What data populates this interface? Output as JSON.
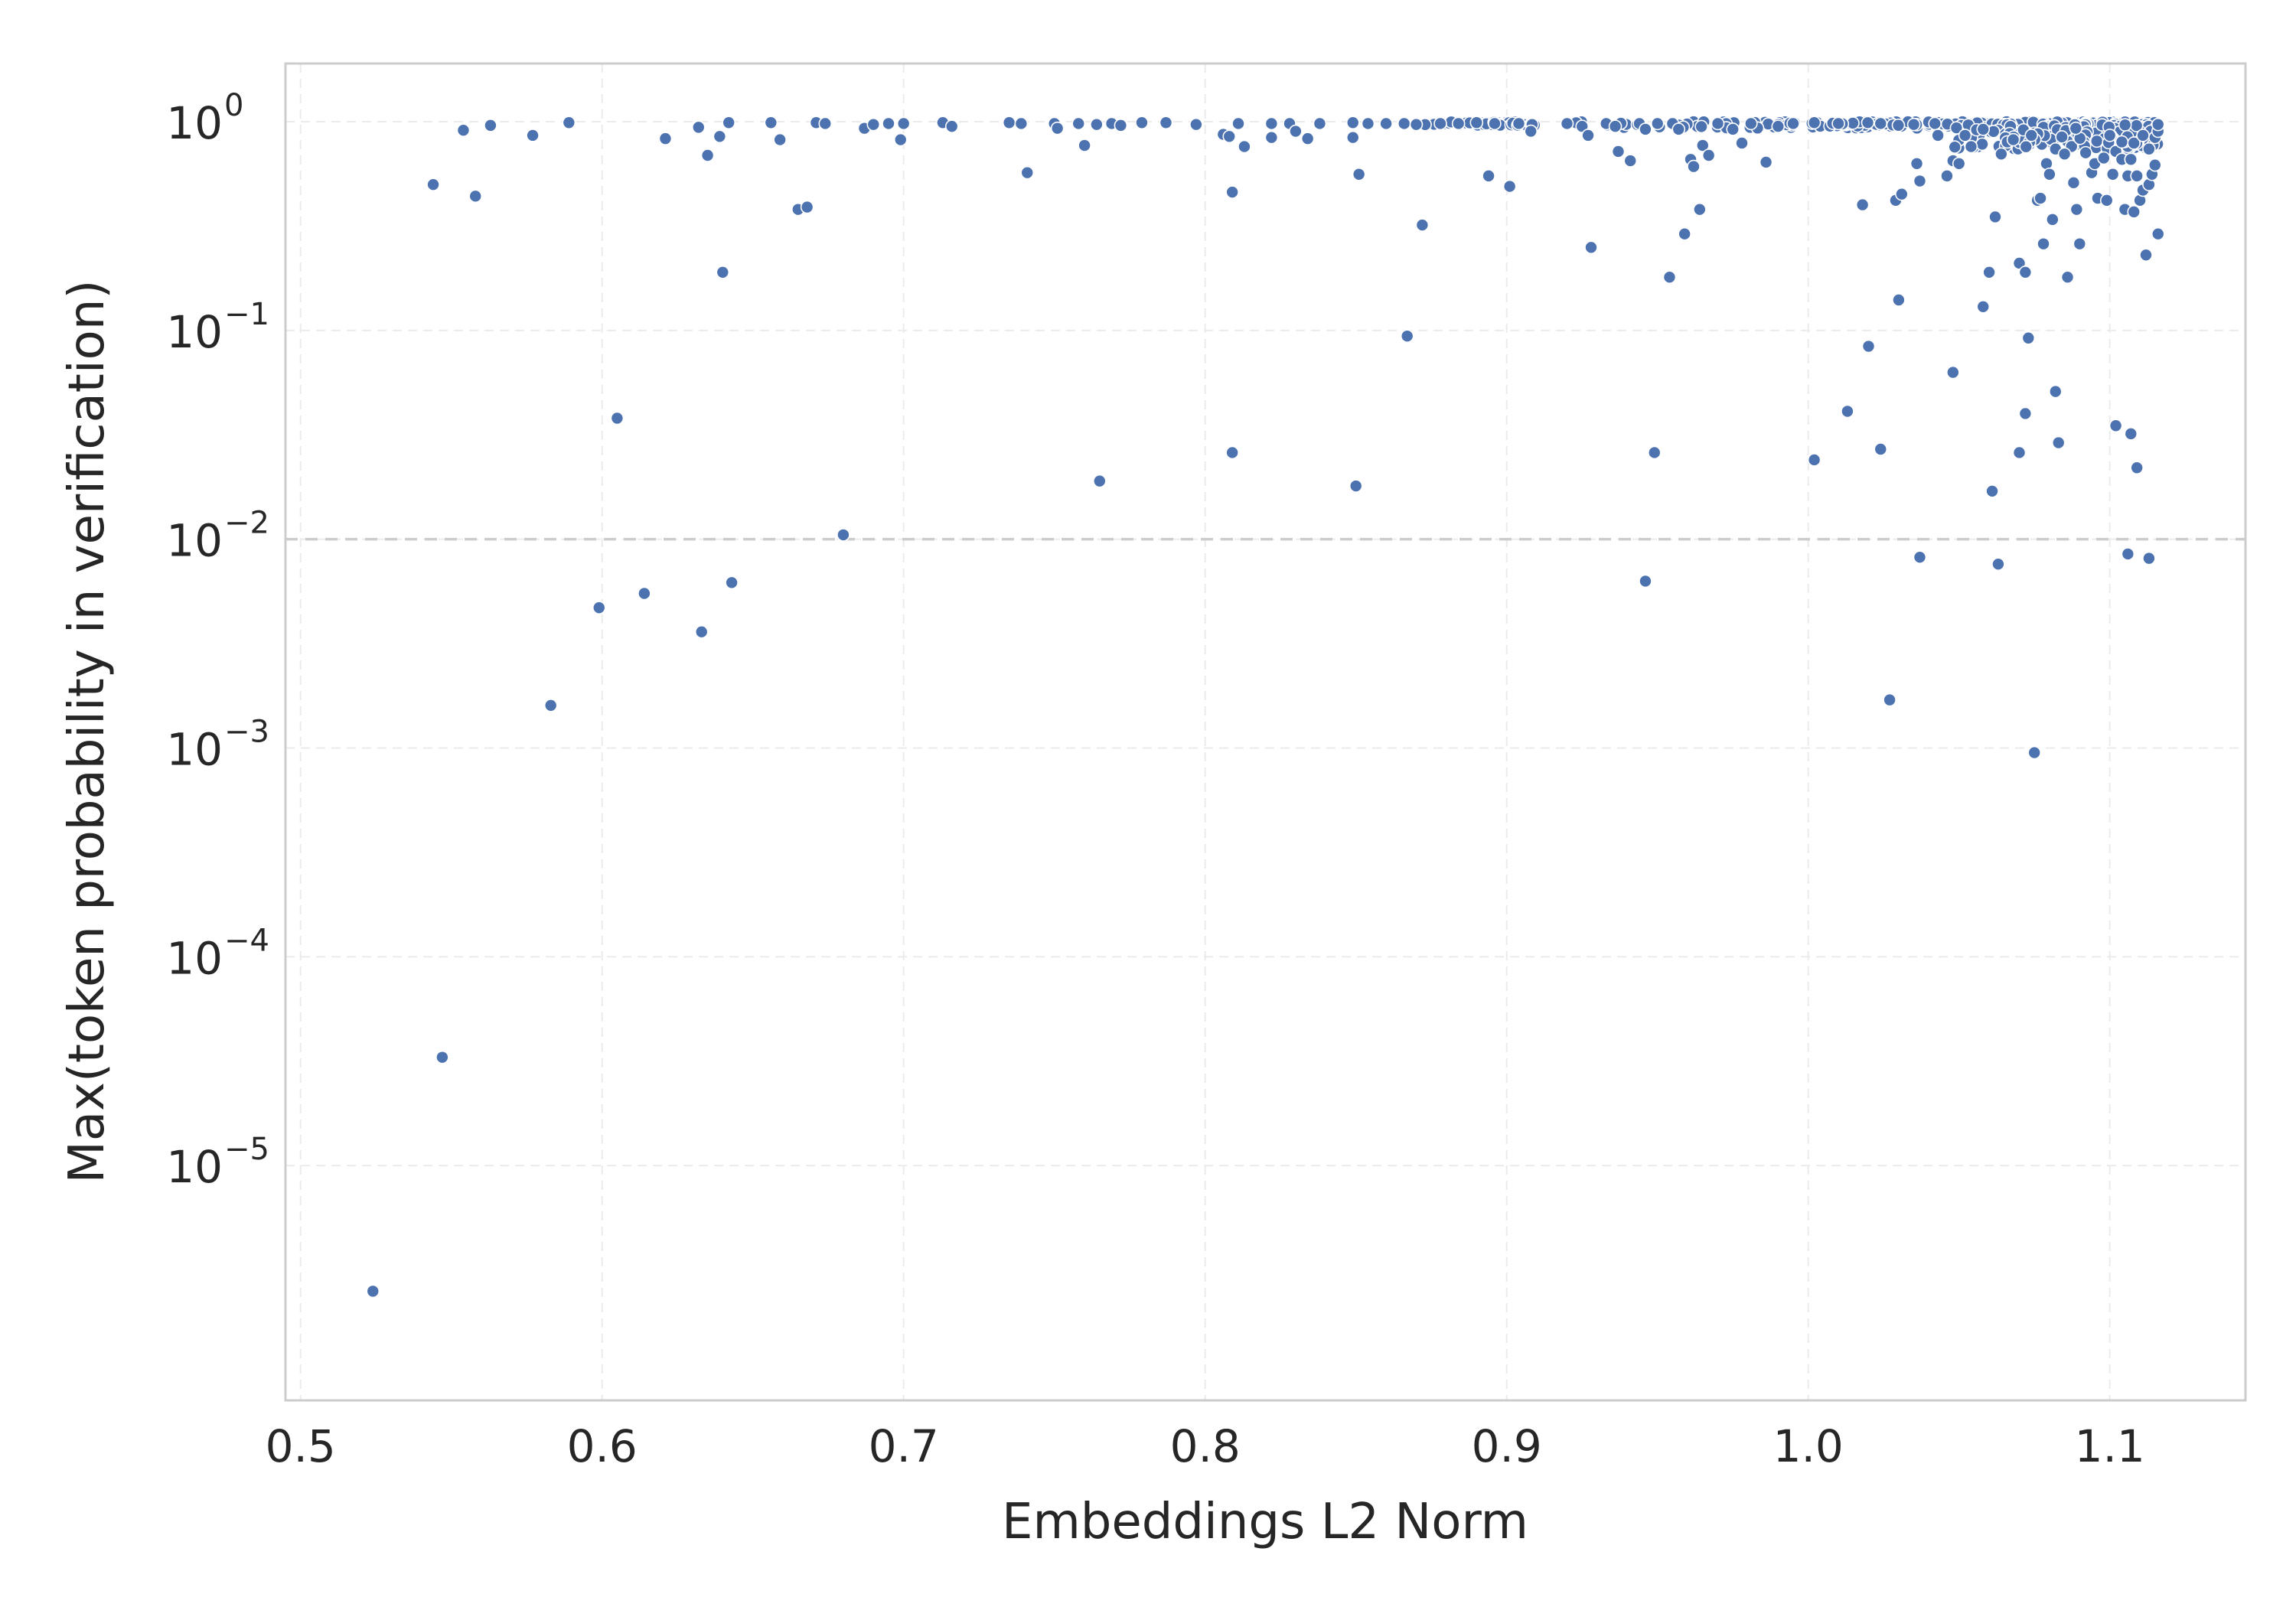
{
  "chart_data": {
    "type": "scatter",
    "title": "",
    "xlabel": "Embeddings L2 Norm",
    "ylabel": "Max(token probability in verification)",
    "x_scale": "linear",
    "y_scale": "log",
    "xlim": [
      0.495,
      1.145
    ],
    "ylim": [
      7.5e-07,
      1.9
    ],
    "x_ticks": [
      0.5,
      0.6,
      0.7,
      0.8,
      0.9,
      1.0,
      1.1
    ],
    "x_tick_labels": [
      "0.5",
      "0.6",
      "0.7",
      "0.8",
      "0.9",
      "1.0",
      "1.1"
    ],
    "y_ticks": [
      {
        "value": 1,
        "base": "10",
        "exp": "0"
      },
      {
        "value": 0.1,
        "base": "10",
        "exp": "−1"
      },
      {
        "value": 0.01,
        "base": "10",
        "exp": "−2"
      },
      {
        "value": 0.001,
        "base": "10",
        "exp": "−3"
      },
      {
        "value": 0.0001,
        "base": "10",
        "exp": "−4"
      },
      {
        "value": 1e-05,
        "base": "10",
        "exp": "−5"
      }
    ],
    "reference_line": {
      "y": 0.01,
      "style": "dashed"
    },
    "grid": true,
    "legend": "none",
    "colors": {
      "points": "#4c72b0",
      "point_edge": "#ffffff",
      "grid": "#ebebeb",
      "spine": "#cccccc",
      "reference": "#cccccc"
    },
    "points": [
      [
        0.524,
        2.5e-06
      ],
      [
        0.547,
        3.3e-05
      ],
      [
        0.583,
        0.0016
      ],
      [
        0.599,
        0.0047
      ],
      [
        0.605,
        0.038
      ],
      [
        0.614,
        0.0055
      ],
      [
        0.633,
        0.0036
      ],
      [
        0.64,
        0.19
      ],
      [
        0.643,
        0.0062
      ],
      [
        0.68,
        0.0105
      ],
      [
        0.765,
        0.019
      ],
      [
        0.809,
        0.026
      ],
      [
        0.85,
        0.018
      ],
      [
        0.867,
        0.094
      ],
      [
        0.946,
        0.0063
      ],
      [
        0.949,
        0.026
      ],
      [
        1.002,
        0.024
      ],
      [
        1.013,
        0.041
      ],
      [
        1.02,
        0.084
      ],
      [
        1.024,
        0.027
      ],
      [
        1.027,
        0.0017
      ],
      [
        1.03,
        0.14
      ],
      [
        1.037,
        0.0082
      ],
      [
        1.048,
        0.063
      ],
      [
        1.061,
        0.017
      ],
      [
        1.063,
        0.0076
      ],
      [
        1.07,
        0.026
      ],
      [
        1.072,
        0.04
      ],
      [
        1.073,
        0.092
      ],
      [
        1.075,
        0.00095
      ],
      [
        1.082,
        0.051
      ],
      [
        1.083,
        0.029
      ],
      [
        1.102,
        0.035
      ],
      [
        1.106,
        0.0085
      ],
      [
        1.107,
        0.032
      ],
      [
        1.109,
        0.022
      ],
      [
        1.113,
        0.0081
      ],
      [
        0.544,
        0.5
      ],
      [
        0.554,
        0.91
      ],
      [
        0.558,
        0.44
      ],
      [
        0.563,
        0.96
      ],
      [
        0.577,
        0.86
      ],
      [
        0.589,
        0.99
      ],
      [
        0.621,
        0.83
      ],
      [
        0.632,
        0.94
      ],
      [
        0.635,
        0.69
      ],
      [
        0.639,
        0.85
      ],
      [
        0.642,
        0.99
      ],
      [
        0.656,
        0.99
      ],
      [
        0.659,
        0.82
      ],
      [
        0.665,
        0.38
      ],
      [
        0.668,
        0.39
      ],
      [
        0.671,
        0.99
      ],
      [
        0.674,
        0.98
      ],
      [
        0.687,
        0.93
      ],
      [
        0.69,
        0.97
      ],
      [
        0.695,
        0.98
      ],
      [
        0.699,
        0.82
      ],
      [
        0.7,
        0.98
      ],
      [
        0.713,
        0.99
      ],
      [
        0.716,
        0.95
      ],
      [
        0.735,
        0.99
      ],
      [
        0.739,
        0.98
      ],
      [
        0.741,
        0.57
      ],
      [
        0.75,
        0.98
      ],
      [
        0.751,
        0.93
      ],
      [
        0.758,
        0.98
      ],
      [
        0.76,
        0.77
      ],
      [
        0.764,
        0.97
      ],
      [
        0.769,
        0.98
      ],
      [
        0.772,
        0.96
      ],
      [
        0.779,
        0.99
      ],
      [
        0.787,
        0.99
      ],
      [
        0.797,
        0.97
      ],
      [
        0.806,
        0.87
      ],
      [
        0.808,
        0.85
      ],
      [
        0.809,
        0.46
      ],
      [
        0.811,
        0.98
      ],
      [
        0.813,
        0.76
      ],
      [
        0.822,
        0.98
      ],
      [
        0.822,
        0.84
      ],
      [
        0.828,
        0.98
      ],
      [
        0.83,
        0.9
      ],
      [
        0.834,
        0.83
      ],
      [
        0.838,
        0.98
      ],
      [
        0.849,
        0.99
      ],
      [
        0.849,
        0.84
      ],
      [
        0.851,
        0.56
      ],
      [
        0.854,
        0.98
      ],
      [
        0.86,
        0.98
      ],
      [
        0.866,
        0.98
      ],
      [
        0.87,
        0.97
      ],
      [
        0.872,
        0.32
      ],
      [
        0.878,
        0.98
      ],
      [
        0.884,
        0.98
      ],
      [
        0.89,
        0.99
      ],
      [
        0.894,
        0.55
      ],
      [
        0.896,
        0.98
      ],
      [
        0.901,
        0.49
      ],
      [
        0.904,
        0.98
      ],
      [
        0.908,
        0.9
      ],
      [
        0.92,
        0.98
      ],
      [
        0.925,
        0.95
      ],
      [
        0.927,
        0.86
      ],
      [
        0.928,
        0.25
      ],
      [
        0.933,
        0.98
      ],
      [
        0.936,
        0.95
      ],
      [
        0.937,
        0.72
      ],
      [
        0.941,
        0.65
      ],
      [
        0.944,
        0.98
      ],
      [
        0.946,
        0.92
      ],
      [
        0.95,
        0.98
      ],
      [
        0.954,
        0.18
      ],
      [
        0.955,
        0.98
      ],
      [
        0.957,
        0.92
      ],
      [
        0.959,
        0.29
      ],
      [
        0.961,
        0.66
      ],
      [
        0.962,
        0.61
      ],
      [
        0.964,
        0.38
      ],
      [
        0.965,
        0.77
      ],
      [
        0.967,
        0.69
      ],
      [
        0.97,
        0.98
      ],
      [
        0.975,
        0.92
      ],
      [
        0.978,
        0.79
      ],
      [
        0.981,
        0.98
      ],
      [
        0.986,
        0.64
      ],
      [
        0.99,
        0.95
      ],
      [
        0.995,
        0.98
      ],
      [
        1.002,
        0.99
      ],
      [
        1.01,
        0.98
      ],
      [
        1.018,
        0.4
      ],
      [
        1.024,
        0.98
      ],
      [
        1.029,
        0.42
      ],
      [
        1.031,
        0.45
      ],
      [
        1.035,
        0.97
      ],
      [
        1.036,
        0.63
      ],
      [
        1.037,
        0.52
      ],
      [
        1.042,
        0.98
      ],
      [
        1.043,
        0.86
      ],
      [
        1.046,
        0.55
      ],
      [
        1.048,
        0.65
      ],
      [
        1.05,
        0.63
      ],
      [
        1.052,
        0.86
      ],
      [
        1.054,
        0.76
      ],
      [
        1.058,
        0.13
      ],
      [
        1.058,
        0.92
      ],
      [
        1.06,
        0.19
      ],
      [
        1.062,
        0.35
      ],
      [
        1.064,
        0.7
      ],
      [
        1.066,
        0.8
      ],
      [
        1.068,
        0.82
      ],
      [
        1.07,
        0.21
      ],
      [
        1.072,
        0.19
      ],
      [
        1.074,
        0.86
      ],
      [
        1.076,
        0.42
      ],
      [
        1.077,
        0.43
      ],
      [
        1.078,
        0.26
      ],
      [
        1.079,
        0.63
      ],
      [
        1.08,
        0.56
      ],
      [
        1.081,
        0.34
      ],
      [
        1.082,
        0.74
      ],
      [
        1.085,
        0.7
      ],
      [
        1.086,
        0.18
      ],
      [
        1.088,
        0.51
      ],
      [
        1.089,
        0.38
      ],
      [
        1.09,
        0.26
      ],
      [
        1.092,
        0.71
      ],
      [
        1.094,
        0.57
      ],
      [
        1.095,
        0.63
      ],
      [
        1.096,
        0.43
      ],
      [
        1.098,
        0.67
      ],
      [
        1.099,
        0.42
      ],
      [
        1.101,
        0.56
      ],
      [
        1.102,
        0.72
      ],
      [
        1.104,
        0.66
      ],
      [
        1.105,
        0.38
      ],
      [
        1.106,
        0.55
      ],
      [
        1.107,
        0.66
      ],
      [
        1.108,
        0.37
      ],
      [
        1.109,
        0.55
      ],
      [
        1.11,
        0.42
      ],
      [
        1.111,
        0.47
      ],
      [
        1.112,
        0.23
      ],
      [
        1.113,
        0.5
      ],
      [
        1.114,
        0.56
      ],
      [
        1.115,
        0.62
      ],
      [
        1.116,
        0.29
      ],
      [
        1.1,
        0.86
      ],
      [
        1.104,
        0.8
      ],
      [
        1.108,
        0.79
      ],
      [
        1.111,
        0.86
      ],
      [
        1.113,
        0.74
      ],
      [
        1.115,
        0.84
      ],
      [
        1.116,
        0.9
      ],
      [
        1.116,
        0.97
      ]
    ],
    "dense_bands": [
      {
        "x_start": 0.92,
        "x_end": 1.116,
        "y_min": 0.93,
        "y_max": 1.0,
        "count": 240
      },
      {
        "x_start": 1.04,
        "x_end": 1.116,
        "y_min": 0.74,
        "y_max": 0.97,
        "count": 180
      },
      {
        "x_start": 0.87,
        "x_end": 0.91,
        "y_min": 0.96,
        "y_max": 1.0,
        "count": 50
      }
    ]
  }
}
